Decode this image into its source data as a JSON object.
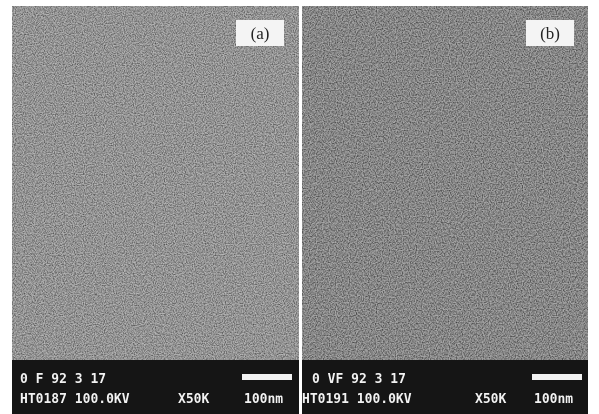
{
  "panels": [
    {
      "label": "(a)",
      "info_line1": "0 F 92 3 17",
      "info_line2": "HT0187 100.0KV",
      "magnification": "X50K",
      "scale": "100nm"
    },
    {
      "label": "(b)",
      "info_line1": "0 VF 92 3 17",
      "info_line2": "HT0191 100.0KV",
      "magnification": "X50K",
      "scale": "100nm"
    }
  ]
}
